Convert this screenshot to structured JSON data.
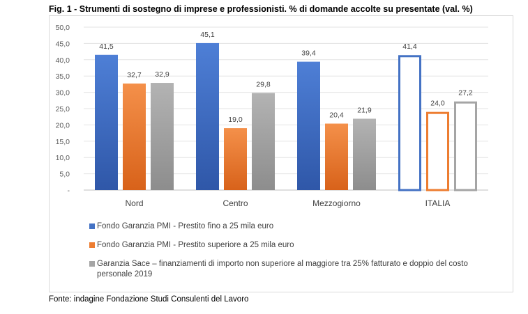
{
  "title": "Fig. 1 - Strumenti di sostegno di imprese e professionisti. % di domande accolte su presentate (val. %)",
  "source": "Fonte: indagine Fondazione Studi Consulenti del Lavoro",
  "chart_data": {
    "type": "bar",
    "categories": [
      "Nord",
      "Centro",
      "Mezzogiorno",
      "ITALIA"
    ],
    "series": [
      {
        "name": "Fondo Garanzia PMI - Prestito fino a 25 mila euro",
        "values": [
          41.5,
          45.1,
          39.4,
          41.4
        ],
        "color": "#4472c4"
      },
      {
        "name": "Fondo Garanzia PMI - Prestito superiore a 25 mila euro",
        "values": [
          32.7,
          19.0,
          20.4,
          24.0
        ],
        "color": "#ed7d31"
      },
      {
        "name": "Garanzia Sace – finanziamenti di importo non superiore al maggiore tra 25% fatturato e doppio del costo personale 2019",
        "values": [
          32.9,
          29.8,
          21.9,
          27.2
        ],
        "color": "#a5a5a5"
      }
    ],
    "outlined_categories": [
      "ITALIA"
    ],
    "ylim": [
      0,
      50
    ],
    "yticks": [
      "-",
      "5,0",
      "10,0",
      "15,0",
      "20,0",
      "25,0",
      "30,0",
      "35,0",
      "40,0",
      "45,0",
      "50,0"
    ],
    "grid": true,
    "legend_position": "bottom",
    "xlabel": "",
    "ylabel": ""
  }
}
